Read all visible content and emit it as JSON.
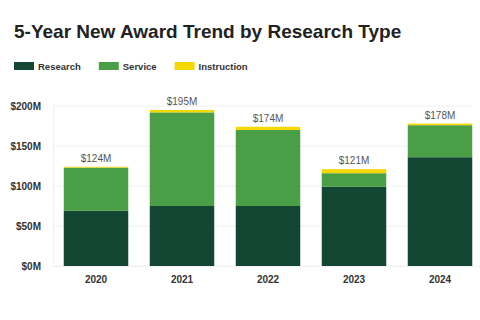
{
  "chart_data": {
    "type": "bar",
    "stacked": true,
    "title": "5-Year New Award Trend by Research Type",
    "categories": [
      "2020",
      "2021",
      "2022",
      "2023",
      "2024"
    ],
    "series": [
      {
        "name": "Research",
        "color": "#134734",
        "values": [
          69,
          75,
          75,
          99,
          136
        ]
      },
      {
        "name": "Service",
        "color": "#4a9e45",
        "values": [
          54,
          117,
          95,
          17,
          40
        ]
      },
      {
        "name": "Instruction",
        "color": "#f5d800",
        "values": [
          1,
          3,
          4,
          5,
          2
        ]
      }
    ],
    "totals": {
      "values": [
        124,
        195,
        174,
        121,
        178
      ],
      "value_labels": [
        "$124M",
        "$195M",
        "$174M",
        "$121M",
        "$178M"
      ]
    },
    "ylim": [
      0,
      200
    ],
    "yticks": [
      {
        "value": 0,
        "label": "$0M"
      },
      {
        "value": 50,
        "label": "$50M"
      },
      {
        "value": 100,
        "label": "$100M"
      },
      {
        "value": 150,
        "label": "$150M"
      },
      {
        "value": 200,
        "label": "$200M"
      }
    ],
    "grid": true,
    "legend": "top-left"
  }
}
